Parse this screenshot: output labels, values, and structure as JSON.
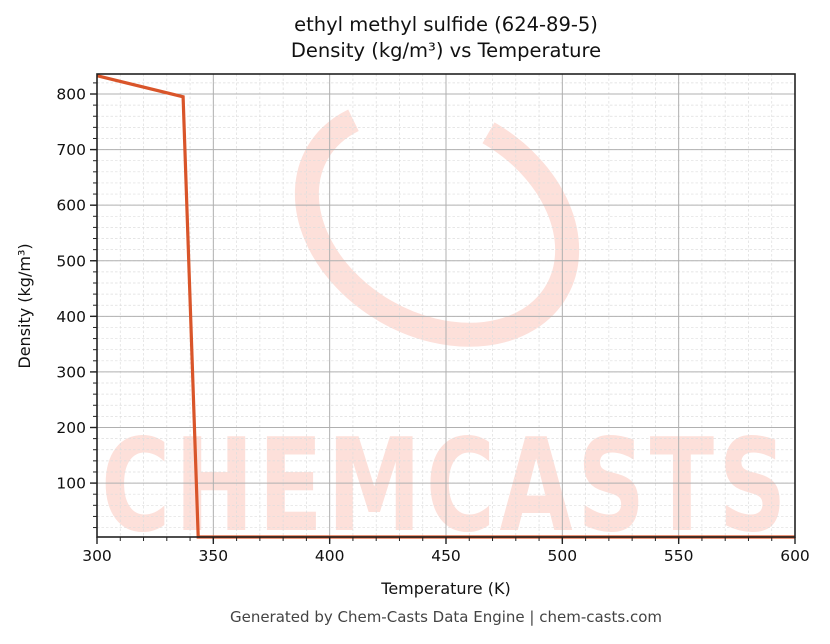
{
  "header": {
    "title_line1": "ethyl methyl sulfide (624-89-5)",
    "title_line2": "Density (kg/m³) vs Temperature"
  },
  "footer": {
    "text": "Generated by Chem-Casts Data Engine | chem-casts.com"
  },
  "watermark": {
    "text": "CHEMCASTS",
    "color": "#fde0da"
  },
  "colors": {
    "line": "#d9552a",
    "grid_major": "#b0b0b0",
    "grid_minor": "#dddddd",
    "axes": "#222222"
  },
  "chart_data": {
    "type": "line",
    "title": "ethyl methyl sulfide (624-89-5)\nDensity (kg/m³) vs Temperature",
    "xlabel": "Temperature (K)",
    "ylabel": "Density (kg/m³)",
    "xlim": [
      300,
      600
    ],
    "ylim": [
      3,
      836
    ],
    "xticks": [
      300,
      350,
      400,
      450,
      500,
      550,
      600
    ],
    "yticks": [
      100,
      200,
      300,
      400,
      500,
      600,
      700,
      800
    ],
    "grid": true,
    "legend": null,
    "series": [
      {
        "name": "Density",
        "x": [
          300,
          337,
          343.5,
          600
        ],
        "y": [
          833,
          795,
          3,
          3
        ]
      }
    ]
  }
}
